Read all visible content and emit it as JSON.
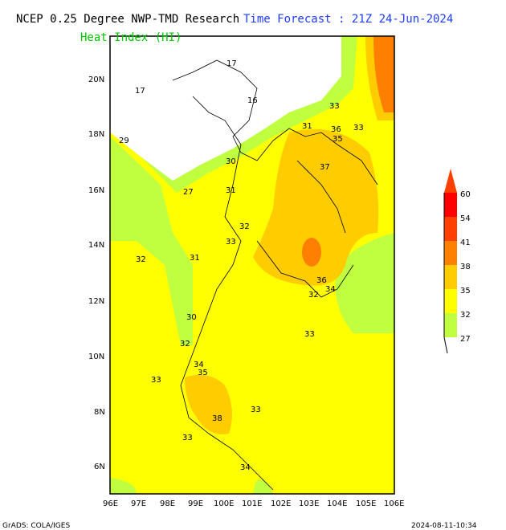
{
  "header": {
    "title_left": "NCEP 0.25 Degree NWP-TMD Research",
    "title_right": "Time Forecast : 21Z 24-Jun-2024",
    "variable": "Heat Index (HI)"
  },
  "axes": {
    "lat_labels": [
      "20N",
      "18N",
      "16N",
      "14N",
      "12N",
      "10N",
      "8N",
      "6N"
    ],
    "lon_labels": [
      "96E",
      "97E",
      "98E",
      "99E",
      "100E",
      "101E",
      "102E",
      "103E",
      "104E",
      "105E",
      "106E"
    ]
  },
  "legend": {
    "levels": [
      "27",
      "32",
      "35",
      "38",
      "41",
      "54",
      "60"
    ],
    "colors": [
      "#c0ff40",
      "#ffff00",
      "#ffcc00",
      "#ff8000",
      "#ff4000",
      "#ff0000",
      "#ff4000"
    ]
  },
  "contour_labels": [
    "17",
    "17",
    "16",
    "29",
    "31",
    "33",
    "35",
    "37",
    "30",
    "27",
    "32",
    "31",
    "33",
    "32",
    "31",
    "30",
    "32",
    "33",
    "34",
    "35",
    "36",
    "33",
    "33",
    "34",
    "33",
    "32",
    "33",
    "34",
    "36",
    "38"
  ],
  "footer": {
    "left": "GrADS: COLA/IGES",
    "right": "2024-08-11-10:34"
  }
}
